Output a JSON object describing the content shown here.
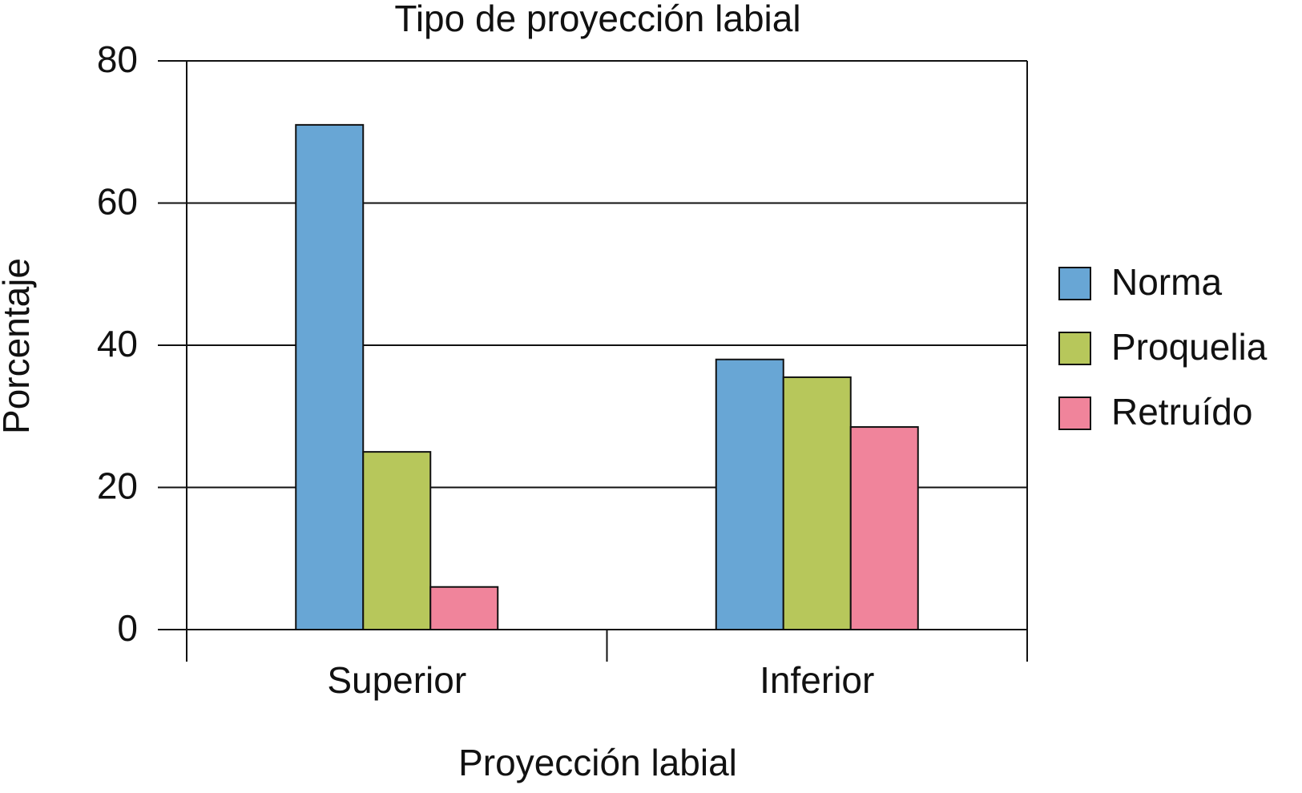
{
  "chart_data": {
    "type": "bar",
    "title": "Tipo de proyección labial",
    "x_label": "Proyección labial",
    "y_label": "Porcentaje",
    "categories": [
      "Superior",
      "Inferior"
    ],
    "series": [
      {
        "name": "Norma",
        "color": "#68a6d5",
        "values": [
          71,
          38
        ]
      },
      {
        "name": "Proquelia",
        "color": "#b7c75b",
        "values": [
          25,
          35.5
        ]
      },
      {
        "name": "Retruído",
        "color": "#f0849b",
        "values": [
          6,
          28.5
        ]
      }
    ],
    "ylim": [
      0,
      80
    ],
    "yticks": [
      0,
      20,
      40,
      60,
      80
    ],
    "grid": true,
    "legend": "right"
  }
}
